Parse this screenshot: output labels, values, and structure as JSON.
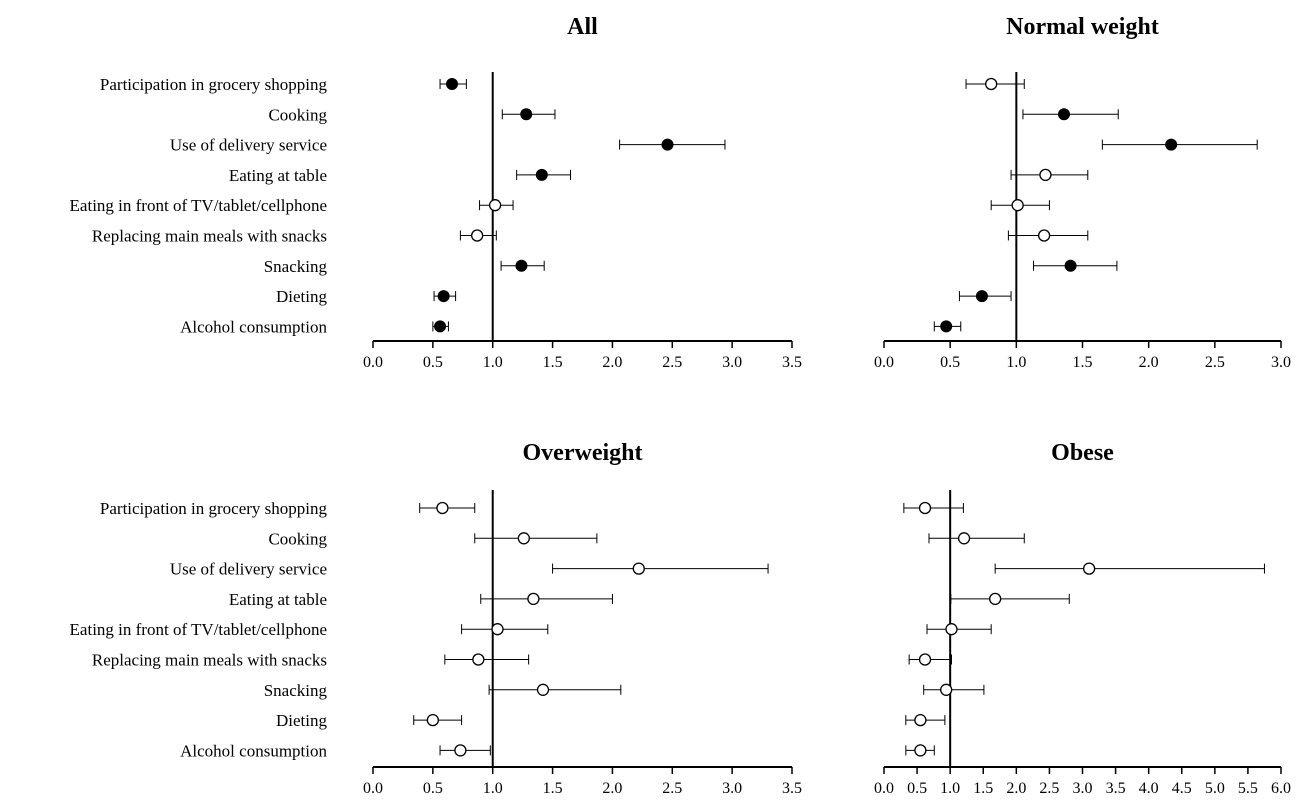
{
  "chart_data": [
    {
      "type": "scatter",
      "title": "All",
      "xlim": [
        0,
        3.5
      ],
      "xticks": [
        "0.0",
        "0.5",
        "1.0",
        "1.5",
        "2.0",
        "2.5",
        "3.0",
        "3.5"
      ],
      "reference_line": 1.0,
      "show_category_labels": true,
      "grid": false,
      "categories": [
        "Participation in grocery shopping",
        "Cooking",
        "Use of delivery service",
        "Eating at table",
        "Eating in front of TV/tablet/cellphone",
        "Replacing main meals with snacks",
        "Snacking",
        "Dieting",
        "Alcohol consumption"
      ],
      "points": [
        {
          "estimate": 0.66,
          "lower": 0.56,
          "upper": 0.78,
          "significant": true
        },
        {
          "estimate": 1.28,
          "lower": 1.08,
          "upper": 1.52,
          "significant": true
        },
        {
          "estimate": 2.46,
          "lower": 2.06,
          "upper": 2.94,
          "significant": true
        },
        {
          "estimate": 1.41,
          "lower": 1.2,
          "upper": 1.65,
          "significant": true
        },
        {
          "estimate": 1.02,
          "lower": 0.89,
          "upper": 1.17,
          "significant": false
        },
        {
          "estimate": 0.87,
          "lower": 0.73,
          "upper": 1.03,
          "significant": false
        },
        {
          "estimate": 1.24,
          "lower": 1.07,
          "upper": 1.43,
          "significant": true
        },
        {
          "estimate": 0.59,
          "lower": 0.51,
          "upper": 0.69,
          "significant": true
        },
        {
          "estimate": 0.56,
          "lower": 0.5,
          "upper": 0.63,
          "significant": true
        }
      ]
    },
    {
      "type": "scatter",
      "title": "Normal weight",
      "xlim": [
        0,
        3.0
      ],
      "xticks": [
        "0.0",
        "0.5",
        "1.0",
        "1.5",
        "2.0",
        "2.5",
        "3.0"
      ],
      "reference_line": 1.0,
      "show_category_labels": false,
      "grid": false,
      "categories": [
        "Participation in grocery shopping",
        "Cooking",
        "Use of delivery service",
        "Eating at table",
        "Eating in front of TV/tablet/cellphone",
        "Replacing main meals with snacks",
        "Snacking",
        "Dieting",
        "Alcohol consumption"
      ],
      "points": [
        {
          "estimate": 0.81,
          "lower": 0.62,
          "upper": 1.06,
          "significant": false
        },
        {
          "estimate": 1.36,
          "lower": 1.05,
          "upper": 1.77,
          "significant": true
        },
        {
          "estimate": 2.17,
          "lower": 1.65,
          "upper": 2.82,
          "significant": true
        },
        {
          "estimate": 1.22,
          "lower": 0.96,
          "upper": 1.54,
          "significant": false
        },
        {
          "estimate": 1.01,
          "lower": 0.81,
          "upper": 1.25,
          "significant": false
        },
        {
          "estimate": 1.21,
          "lower": 0.94,
          "upper": 1.54,
          "significant": false
        },
        {
          "estimate": 1.41,
          "lower": 1.13,
          "upper": 1.76,
          "significant": true
        },
        {
          "estimate": 0.74,
          "lower": 0.57,
          "upper": 0.96,
          "significant": true
        },
        {
          "estimate": 0.47,
          "lower": 0.38,
          "upper": 0.58,
          "significant": true
        }
      ]
    },
    {
      "type": "scatter",
      "title": "Overweight",
      "xlim": [
        0,
        3.5
      ],
      "xticks": [
        "0.0",
        "0.5",
        "1.0",
        "1.5",
        "2.0",
        "2.5",
        "3.0",
        "3.5"
      ],
      "reference_line": 1.0,
      "show_category_labels": true,
      "grid": false,
      "categories": [
        "Participation in grocery shopping",
        "Cooking",
        "Use of delivery service",
        "Eating at table",
        "Eating in front of TV/tablet/cellphone",
        "Replacing main meals with snacks",
        "Snacking",
        "Dieting",
        "Alcohol consumption"
      ],
      "points": [
        {
          "estimate": 0.58,
          "lower": 0.39,
          "upper": 0.85,
          "significant": false
        },
        {
          "estimate": 1.26,
          "lower": 0.85,
          "upper": 1.87,
          "significant": false
        },
        {
          "estimate": 2.22,
          "lower": 1.5,
          "upper": 3.3,
          "significant": false
        },
        {
          "estimate": 1.34,
          "lower": 0.9,
          "upper": 2.0,
          "significant": false
        },
        {
          "estimate": 1.04,
          "lower": 0.74,
          "upper": 1.46,
          "significant": false
        },
        {
          "estimate": 0.88,
          "lower": 0.6,
          "upper": 1.3,
          "significant": false
        },
        {
          "estimate": 1.42,
          "lower": 0.97,
          "upper": 2.07,
          "significant": false
        },
        {
          "estimate": 0.5,
          "lower": 0.34,
          "upper": 0.74,
          "significant": false
        },
        {
          "estimate": 0.73,
          "lower": 0.56,
          "upper": 0.98,
          "significant": false
        }
      ]
    },
    {
      "type": "scatter",
      "title": "Obese",
      "xlim": [
        0,
        6.0
      ],
      "xticks": [
        "0.0",
        "0.5",
        "1.0",
        "1.5",
        "2.0",
        "2.5",
        "3.0",
        "3.5",
        "4.0",
        "4.5",
        "5.0",
        "5.5",
        "6.0"
      ],
      "reference_line": 1.0,
      "show_category_labels": false,
      "grid": false,
      "categories": [
        "Participation in grocery shopping",
        "Cooking",
        "Use of delivery service",
        "Eating at table",
        "Eating in front of TV/tablet/cellphone",
        "Replacing main meals with snacks",
        "Snacking",
        "Dieting",
        "Alcohol consumption"
      ],
      "points": [
        {
          "estimate": 0.62,
          "lower": 0.3,
          "upper": 1.2,
          "significant": false
        },
        {
          "estimate": 1.21,
          "lower": 0.68,
          "upper": 2.12,
          "significant": false
        },
        {
          "estimate": 3.1,
          "lower": 1.68,
          "upper": 5.75,
          "significant": false
        },
        {
          "estimate": 1.68,
          "lower": 1.01,
          "upper": 2.8,
          "significant": false
        },
        {
          "estimate": 1.02,
          "lower": 0.65,
          "upper": 1.62,
          "significant": false
        },
        {
          "estimate": 0.62,
          "lower": 0.38,
          "upper": 1.02,
          "significant": false
        },
        {
          "estimate": 0.94,
          "lower": 0.6,
          "upper": 1.51,
          "significant": false
        },
        {
          "estimate": 0.55,
          "lower": 0.33,
          "upper": 0.92,
          "significant": false
        },
        {
          "estimate": 0.55,
          "lower": 0.33,
          "upper": 0.76,
          "significant": false
        }
      ]
    }
  ]
}
